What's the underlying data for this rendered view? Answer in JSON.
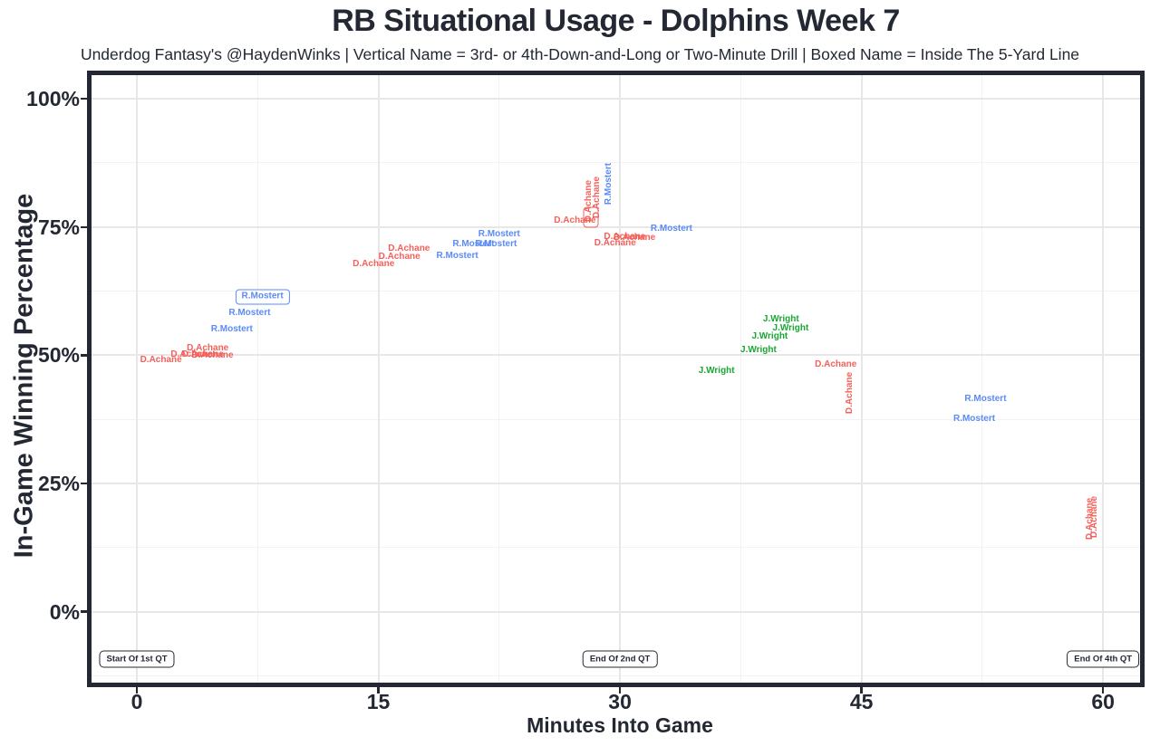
{
  "chart_data": {
    "type": "scatter",
    "title": "RB Situational Usage - Dolphins Week 7",
    "subtitle": "Underdog Fantasy's @HaydenWinks | Vertical Name = 3rd- or 4th-Down-and-Long or Two-Minute Drill | Boxed Name = Inside The 5-Yard Line",
    "xlabel": "Minutes Into Game",
    "ylabel": "In-Game Winning Percentage",
    "legend": "none",
    "grid": "major-and-minor",
    "encoding": {
      "vertical_name": "3rd- or 4th-Down-and-Long or Two-Minute Drill",
      "boxed_name": "Inside The 5-Yard Line",
      "x": "minutes into game",
      "y": "in-game winning percentage"
    },
    "theme": {
      "dark": "#232833",
      "background": "#ffffff",
      "grid_major": "#e7e7e7",
      "grid_minor": "#f2f2f2"
    },
    "colors": {
      "D.Achane": "#f4605a",
      "R.Mostert": "#5b8bf7",
      "J.Wright": "#18a733"
    },
    "axes": {
      "xlim": [
        -2.8,
        62.3
      ],
      "ylim": [
        -14,
        104.5
      ],
      "x_ticks": [
        0,
        15,
        30,
        45,
        60
      ],
      "y_ticks": [
        {
          "pct": 100,
          "label": "100%"
        },
        {
          "pct": 75,
          "label": "75%"
        },
        {
          "pct": 50,
          "label": "50%"
        },
        {
          "pct": 25,
          "label": "25%"
        },
        {
          "pct": 0,
          "label": "0%"
        }
      ],
      "x_major": [
        0,
        15,
        30,
        45,
        60
      ],
      "x_minor": [
        7.5,
        22.5,
        37.5,
        52.5
      ],
      "y_major": [
        0,
        25,
        50,
        75,
        100
      ],
      "y_minor": [
        -12.5,
        12.5,
        37.5,
        62.5,
        87.5
      ]
    },
    "points": [
      {
        "player": "D.Achane",
        "min": 1.5,
        "win_pct": 49.0
      },
      {
        "player": "D.Achane",
        "min": 3.4,
        "win_pct": 50.1
      },
      {
        "player": "D.Achane",
        "min": 4.1,
        "win_pct": 50.0
      },
      {
        "player": "D.Achane",
        "min": 4.7,
        "win_pct": 49.9
      },
      {
        "player": "D.Achane",
        "min": 4.4,
        "win_pct": 51.3
      },
      {
        "player": "R.Mostert",
        "min": 5.9,
        "win_pct": 55.0
      },
      {
        "player": "R.Mostert",
        "min": 7.0,
        "win_pct": 58.2
      },
      {
        "player": "R.Mostert",
        "min": 7.8,
        "win_pct": 61.4,
        "boxed": true
      },
      {
        "player": "D.Achane",
        "min": 14.7,
        "win_pct": 67.7
      },
      {
        "player": "D.Achane",
        "min": 16.3,
        "win_pct": 69.1
      },
      {
        "player": "D.Achane",
        "min": 16.9,
        "win_pct": 70.7
      },
      {
        "player": "R.Mostert",
        "min": 19.9,
        "win_pct": 69.3
      },
      {
        "player": "R.Mostert",
        "min": 20.9,
        "win_pct": 71.6
      },
      {
        "player": "R.Mostert",
        "min": 22.3,
        "win_pct": 71.6
      },
      {
        "player": "R.Mostert",
        "min": 22.5,
        "win_pct": 73.5
      },
      {
        "player": "D.Achane",
        "min": 27.2,
        "win_pct": 76.2
      },
      {
        "player": "D.Achane",
        "min": 28.1,
        "win_pct": 80.1,
        "orient": "v"
      },
      {
        "player": "D.Achane",
        "min": 28.6,
        "win_pct": 80.8,
        "orient": "v"
      },
      {
        "player": "R.Mostert",
        "min": 29.3,
        "win_pct": 83.4,
        "orient": "v"
      },
      {
        "player": "D.Achane",
        "min": 29.7,
        "win_pct": 71.8
      },
      {
        "player": "D.Achane",
        "min": 30.3,
        "win_pct": 73.0
      },
      {
        "player": "D.Achane",
        "min": 30.9,
        "win_pct": 72.8
      },
      {
        "player": "R.Mostert",
        "min": 33.2,
        "win_pct": 74.6
      },
      {
        "player": "J.Wright",
        "min": 36.0,
        "win_pct": 46.9
      },
      {
        "player": "J.Wright",
        "min": 38.6,
        "win_pct": 51.0
      },
      {
        "player": "J.Wright",
        "min": 39.3,
        "win_pct": 53.6
      },
      {
        "player": "J.Wright",
        "min": 40.6,
        "win_pct": 55.2
      },
      {
        "player": "J.Wright",
        "min": 40.0,
        "win_pct": 57.0
      },
      {
        "player": "D.Achane",
        "min": 43.4,
        "win_pct": 48.1
      },
      {
        "player": "D.Achane",
        "min": 44.3,
        "win_pct": 42.7,
        "orient": "v"
      },
      {
        "player": "R.Mostert",
        "min": 52.7,
        "win_pct": 41.4
      },
      {
        "player": "R.Mostert",
        "min": 52.0,
        "win_pct": 37.5
      },
      {
        "player": "D.Achane",
        "min": 59.2,
        "win_pct": 18.1,
        "orient": "v"
      },
      {
        "player": "D.Achane",
        "min": 59.5,
        "win_pct": 18.5,
        "orient": "v"
      }
    ],
    "clipped_box": {
      "player": "D.Achane",
      "min": 28.2,
      "win_pct": 76.9
    },
    "annotations": [
      {
        "label": "Start Of 1st QT",
        "min": 0,
        "win_pct": -9.3
      },
      {
        "label": "End Of 2nd QT",
        "min": 30,
        "win_pct": -9.3
      },
      {
        "label": "End Of 4th QT",
        "min": 60,
        "win_pct": -9.3
      }
    ]
  }
}
